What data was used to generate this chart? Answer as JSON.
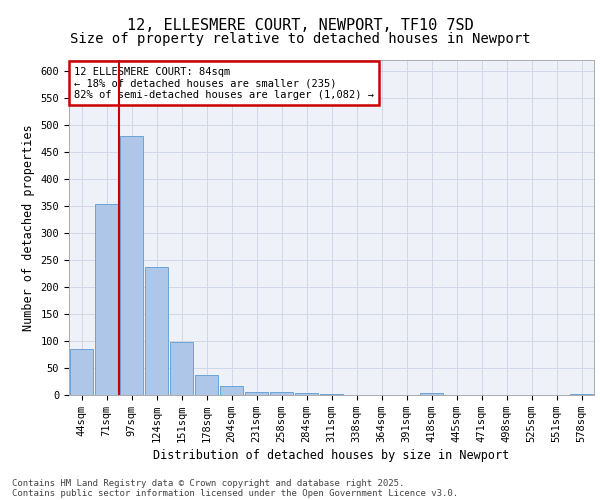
{
  "title_line1": "12, ELLESMERE COURT, NEWPORT, TF10 7SD",
  "title_line2": "Size of property relative to detached houses in Newport",
  "xlabel": "Distribution of detached houses by size in Newport",
  "ylabel": "Number of detached properties",
  "categories": [
    "44sqm",
    "71sqm",
    "97sqm",
    "124sqm",
    "151sqm",
    "178sqm",
    "204sqm",
    "231sqm",
    "258sqm",
    "284sqm",
    "311sqm",
    "338sqm",
    "364sqm",
    "391sqm",
    "418sqm",
    "445sqm",
    "471sqm",
    "498sqm",
    "525sqm",
    "551sqm",
    "578sqm"
  ],
  "values": [
    85,
    353,
    480,
    237,
    98,
    37,
    16,
    6,
    6,
    4,
    2,
    0,
    0,
    0,
    4,
    0,
    0,
    0,
    0,
    0,
    2
  ],
  "bar_color": "#aec6e8",
  "bar_edge_color": "#5b9bd5",
  "grid_color": "#d0d8e8",
  "background_color": "#eef2f8",
  "vline_x": 1.5,
  "vline_color": "#cc0000",
  "annotation_text": "12 ELLESMERE COURT: 84sqm\n← 18% of detached houses are smaller (235)\n82% of semi-detached houses are larger (1,082) →",
  "annotation_box_color": "#cc0000",
  "ylim": [
    0,
    620
  ],
  "yticks": [
    0,
    50,
    100,
    150,
    200,
    250,
    300,
    350,
    400,
    450,
    500,
    550,
    600
  ],
  "footnote_line1": "Contains HM Land Registry data © Crown copyright and database right 2025.",
  "footnote_line2": "Contains public sector information licensed under the Open Government Licence v3.0.",
  "title_fontsize": 11,
  "subtitle_fontsize": 10,
  "axis_label_fontsize": 8.5,
  "tick_fontsize": 7.5,
  "annotation_fontsize": 7.5,
  "footnote_fontsize": 6.5
}
